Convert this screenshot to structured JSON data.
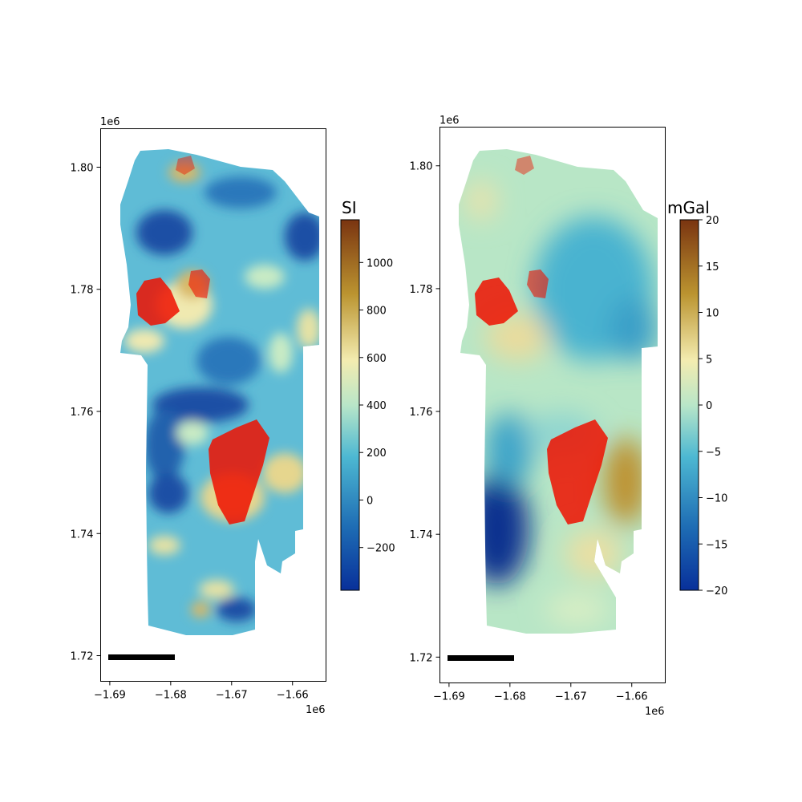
{
  "chart_data": [
    {
      "type": "heatmap",
      "panel": "left",
      "x_ticks": [
        "−1.69",
        "−1.68",
        "−1.67",
        "−1.66"
      ],
      "x_tick_values": [
        -1690000,
        -1680000,
        -1670000,
        -1660000
      ],
      "x_offset_label": "1e6",
      "y_ticks": [
        "1.72",
        "1.74",
        "1.76",
        "1.78",
        "1.80"
      ],
      "y_tick_values": [
        1720000,
        1740000,
        1760000,
        1780000,
        1800000
      ],
      "y_offset_label": "1e6",
      "xlim": [
        -1691500,
        -1654500
      ],
      "ylim": [
        1715800,
        1806300
      ],
      "colorbar": {
        "title": "SI",
        "min": -380,
        "max": 1180,
        "ticks": [
          "−200",
          "0",
          "200",
          "400",
          "600",
          "800",
          "1000"
        ],
        "tick_values": [
          -200,
          0,
          200,
          400,
          600,
          800,
          1000
        ],
        "colormap": "blue-cyan-cream-gold-brown"
      },
      "overlay": {
        "color": "#ee1100",
        "description": "red outcrop polygons"
      },
      "scale_bar": {
        "x_start": -1690000,
        "x_end": -1679500,
        "y": 1720000
      }
    },
    {
      "type": "heatmap",
      "panel": "right",
      "x_ticks": [
        "−1.69",
        "−1.68",
        "−1.67",
        "−1.66"
      ],
      "x_tick_values": [
        -1690000,
        -1680000,
        -1670000,
        -1660000
      ],
      "x_offset_label": "1e6",
      "y_ticks": [
        "1.72",
        "1.74",
        "1.76",
        "1.78",
        "1.80"
      ],
      "y_tick_values": [
        1720000,
        1740000,
        1760000,
        1780000,
        1800000
      ],
      "y_offset_label": "1e6",
      "xlim": [
        -1691500,
        -1654500
      ],
      "ylim": [
        1715800,
        1806300
      ],
      "colorbar": {
        "title": "mGal",
        "min": -20,
        "max": 20,
        "ticks": [
          "−20",
          "−15",
          "−10",
          "−5",
          "0",
          "5",
          "10",
          "15",
          "20"
        ],
        "tick_values": [
          -20,
          -15,
          -10,
          -5,
          0,
          5,
          10,
          15,
          20
        ],
        "colormap": "blue-cyan-cream-gold-brown"
      },
      "overlay": {
        "color": "#ee1100",
        "description": "red outcrop polygons"
      },
      "scale_bar": {
        "x_start": -1690000,
        "x_end": -1679500,
        "y": 1720000
      }
    }
  ],
  "colormap_stops": [
    "#08309a",
    "#1e6cb4",
    "#4db8d2",
    "#b9e6c8",
    "#f3ecb0",
    "#bb9430",
    "#7a3410"
  ],
  "data_color": "#ee1100"
}
